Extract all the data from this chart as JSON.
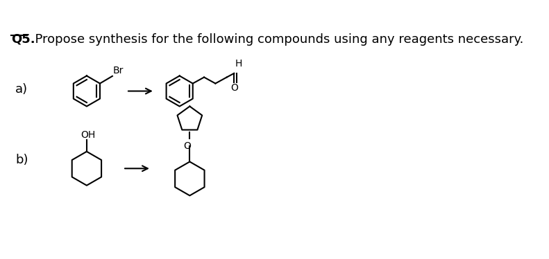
{
  "title_q": "Q5.",
  "title_text": "  Propose synthesis for the following compounds using any reagents necessary.",
  "label_a": "a)",
  "label_b": "b)",
  "bg_color": "#ffffff",
  "line_color": "#000000",
  "font_size_title": 13,
  "font_size_label": 13,
  "br_label": "Br",
  "oh_label": "OH",
  "h_label": "H",
  "o_label": "O"
}
